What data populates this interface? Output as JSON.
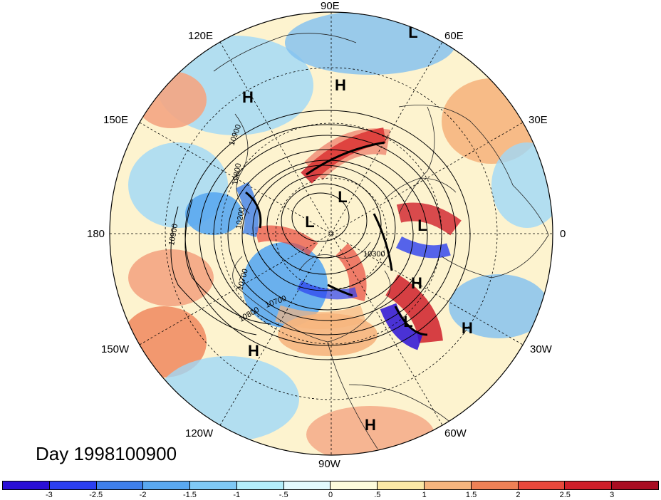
{
  "title": "Day 1998100900",
  "longitude_labels": {
    "lon_90E": "90E",
    "lon_60E": "60E",
    "lon_30E": "30E",
    "lon_0": "0",
    "lon_30W": "30W",
    "lon_60W": "60W",
    "lon_90W": "90W",
    "lon_120W": "120W",
    "lon_150W": "150W",
    "lon_180": "180",
    "lon_150E": "150E",
    "lon_120E": "120E"
  },
  "pressure_centers": [
    {
      "id": "L1",
      "label": "L"
    },
    {
      "id": "H1",
      "label": "H"
    },
    {
      "id": "H2",
      "label": "H"
    },
    {
      "id": "L2",
      "label": "L"
    },
    {
      "id": "L3",
      "label": "L"
    },
    {
      "id": "L4",
      "label": "L"
    },
    {
      "id": "H3",
      "label": "H"
    },
    {
      "id": "L5",
      "label": "L"
    },
    {
      "id": "H4",
      "label": "H"
    },
    {
      "id": "H5",
      "label": "H"
    },
    {
      "id": "H6",
      "label": "H"
    }
  ],
  "contour_labels": {
    "c1": "10900",
    "c2": "10800",
    "c3": "10900",
    "c4": "10700",
    "c5": "10800",
    "c6": "10700",
    "c7": "10200",
    "c8": "10300"
  },
  "colorbar": {
    "colors": [
      "#2a0fd6",
      "#2b3ff0",
      "#3f7fea",
      "#5aa8f0",
      "#7fc9f5",
      "#b3eefb",
      "#e3f9fd",
      "#fdfbdc",
      "#fbe8a6",
      "#f6b57e",
      "#ef8156",
      "#e8483c",
      "#cf1f2a",
      "#a90d22"
    ],
    "labels": [
      "-3",
      "-2.5",
      "-2",
      "-1.5",
      "-1",
      "-.5",
      "0",
      ".5",
      "1",
      "1.5",
      "2",
      "2.5",
      "3"
    ]
  }
}
